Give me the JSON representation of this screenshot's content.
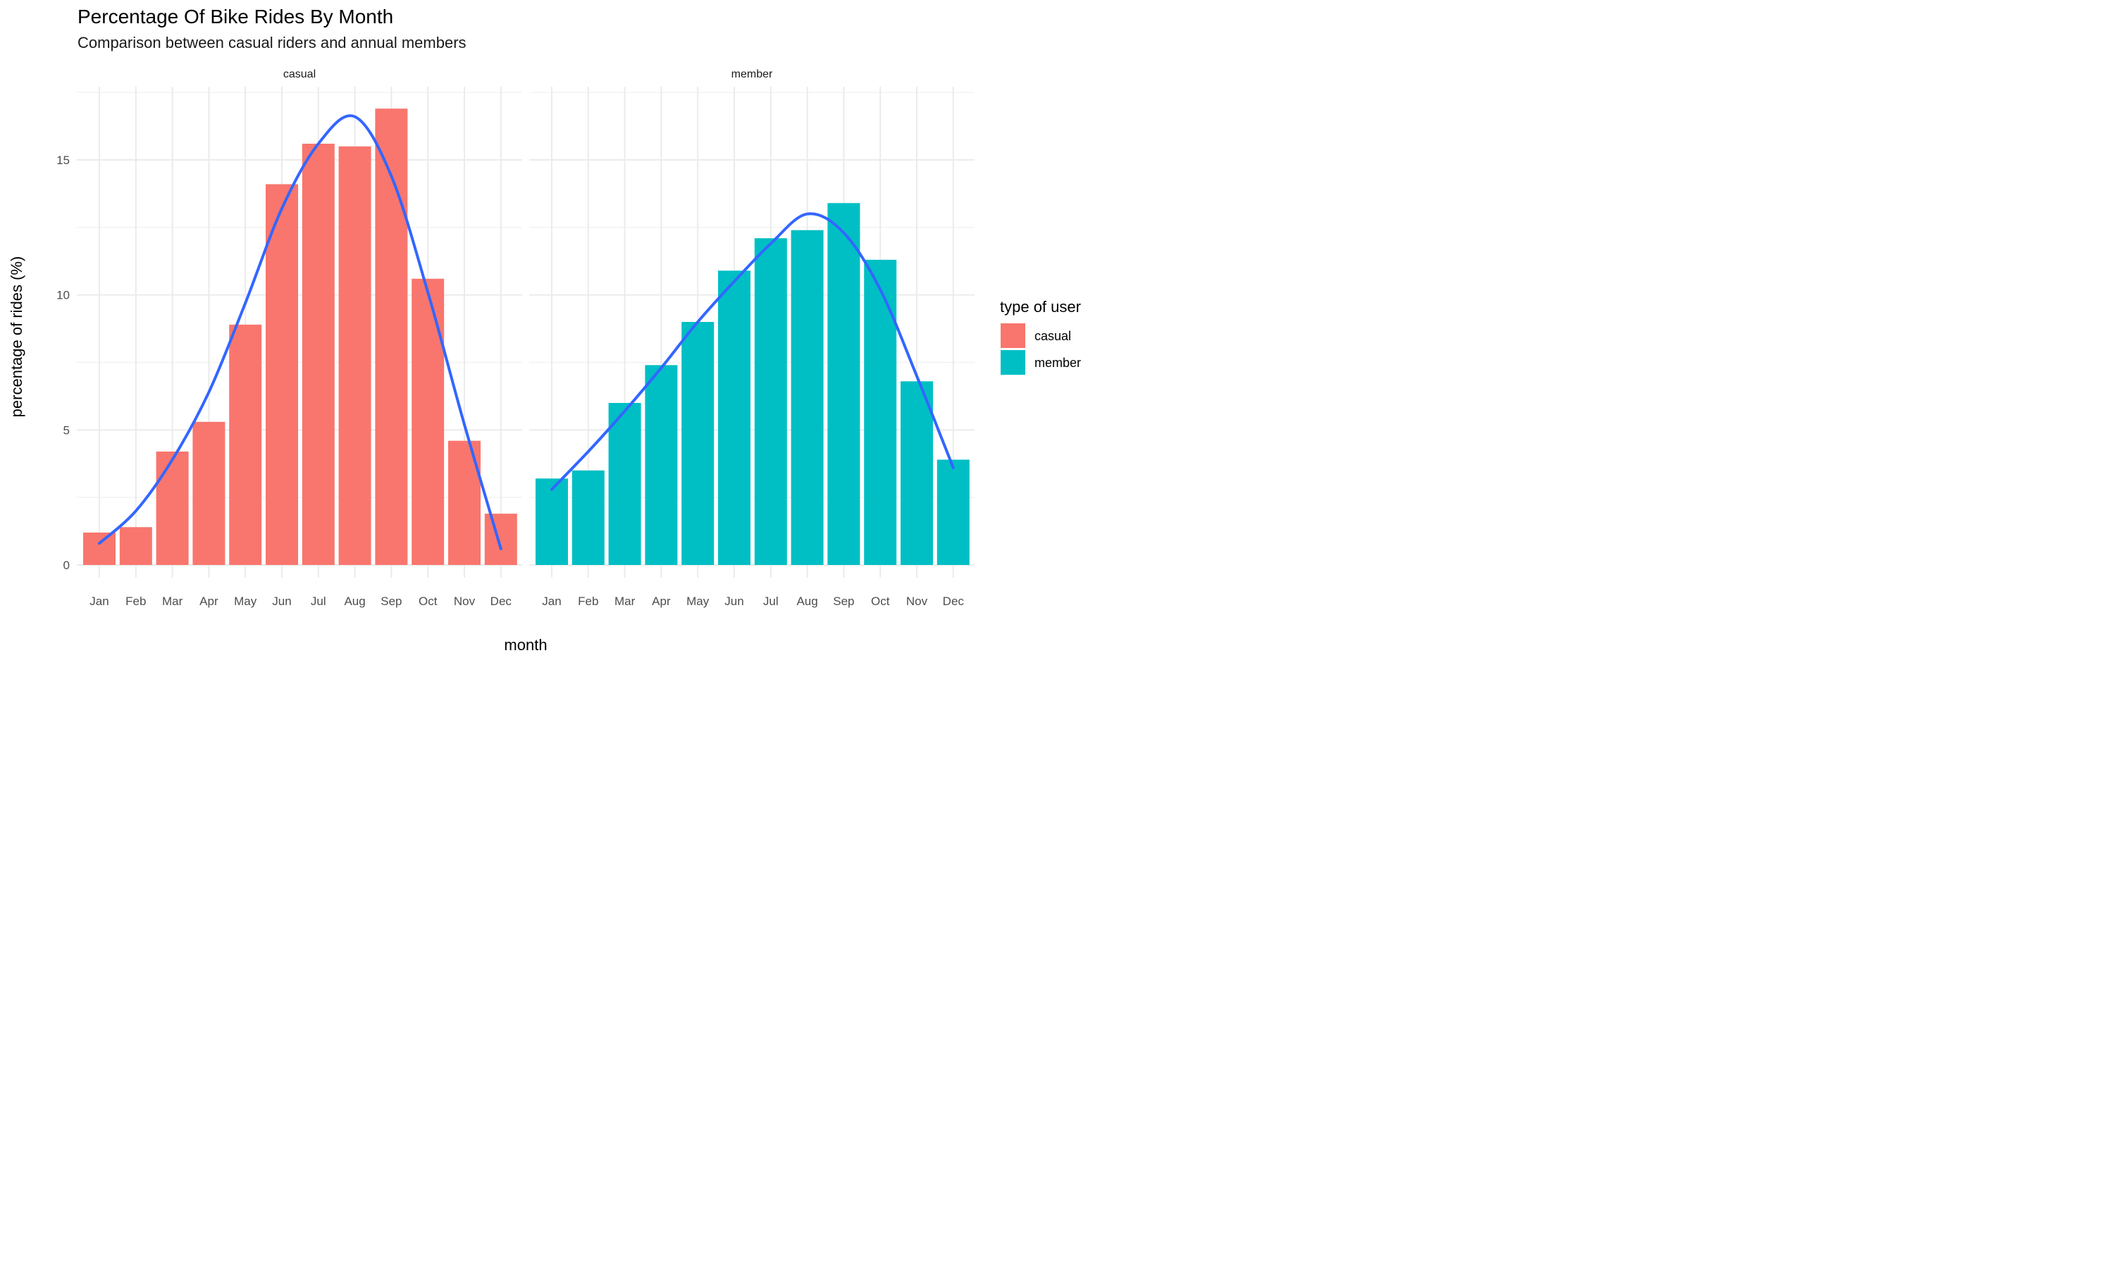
{
  "chart_data": {
    "type": "bar",
    "title": "Percentage Of Bike Rides By Month",
    "subtitle": "Comparison between casual riders and annual members",
    "xlabel": "month",
    "ylabel": "percentage of rides (%)",
    "ylim": [
      0,
      17.5
    ],
    "yticks": [
      "0",
      "5",
      "10",
      "15"
    ],
    "categories": [
      "Jan",
      "Feb",
      "Mar",
      "Apr",
      "May",
      "Jun",
      "Jul",
      "Aug",
      "Sep",
      "Oct",
      "Nov",
      "Dec"
    ],
    "facets": [
      {
        "name": "casual",
        "color": "#F8766D",
        "values": [
          1.2,
          1.4,
          4.2,
          5.3,
          8.9,
          14.1,
          15.6,
          15.5,
          16.9,
          10.6,
          4.6,
          1.9
        ],
        "smooth": [
          0.8,
          2.0,
          3.9,
          6.4,
          9.7,
          13.2,
          15.6,
          16.6,
          14.4,
          10.1,
          5.2,
          0.6
        ]
      },
      {
        "name": "member",
        "color": "#00BFC4",
        "values": [
          3.2,
          3.5,
          6.0,
          7.4,
          9.0,
          10.9,
          12.1,
          12.4,
          13.4,
          11.3,
          6.8,
          3.9
        ],
        "smooth": [
          2.8,
          4.2,
          5.7,
          7.3,
          9.0,
          10.5,
          11.9,
          13.0,
          12.3,
          10.2,
          7.0,
          3.6
        ]
      }
    ],
    "smooth_color": "#3366FF",
    "legend": {
      "title": "type of user",
      "items": [
        {
          "label": "casual",
          "color": "#F8766D"
        },
        {
          "label": "member",
          "color": "#00BFC4"
        }
      ]
    }
  }
}
